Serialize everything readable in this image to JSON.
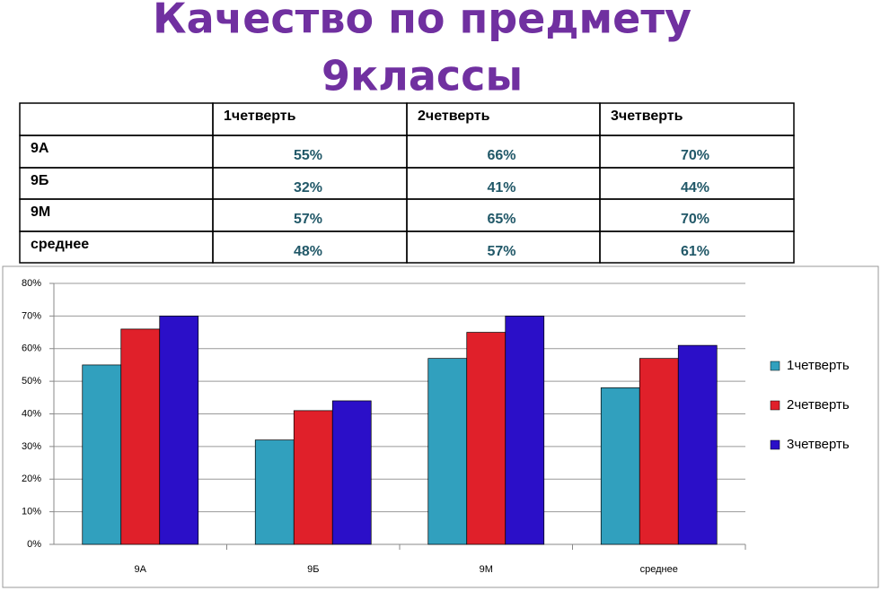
{
  "header": {
    "title_lines": [
      "Качество по предмету",
      "9классы"
    ]
  },
  "table": {
    "rows": [
      [
        "",
        "1четверть",
        "2четверть",
        "3четверть"
      ],
      [
        "9А",
        "55%",
        "66%",
        "70%"
      ],
      [
        "9Б",
        "32%",
        "41%",
        "44%"
      ],
      [
        "9М",
        "57%",
        "65%",
        "70%"
      ],
      [
        "среднее",
        "48%",
        "57%",
        "61%"
      ]
    ]
  },
  "chart_data": {
    "type": "bar",
    "categories": [
      "9А",
      "9Б",
      "9М",
      "среднее"
    ],
    "series": [
      {
        "name": "1четверть",
        "color": "#31a0be",
        "values": [
          55,
          32,
          57,
          48
        ]
      },
      {
        "name": "2четверть",
        "color": "#e0202a",
        "values": [
          66,
          41,
          65,
          57
        ]
      },
      {
        "name": "3четверть",
        "color": "#2b0fc8",
        "values": [
          70,
          44,
          70,
          61
        ]
      }
    ],
    "ylim": [
      0,
      80
    ],
    "yticks": [
      {
        "value": 0,
        "label": "0%"
      },
      {
        "value": 10,
        "label": "10%"
      },
      {
        "value": 20,
        "label": "20%"
      },
      {
        "value": 30,
        "label": "30%"
      },
      {
        "value": 40,
        "label": "40%"
      },
      {
        "value": 50,
        "label": "50%"
      },
      {
        "value": 60,
        "label": "60%"
      },
      {
        "value": 70,
        "label": "70%"
      },
      {
        "value": 80,
        "label": "80%"
      }
    ],
    "grid": true,
    "legend": "right"
  }
}
